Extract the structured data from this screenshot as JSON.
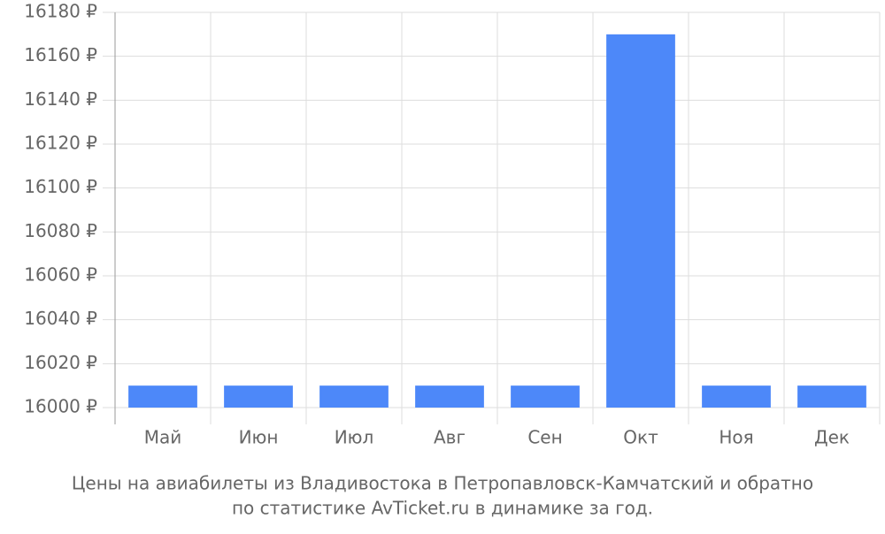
{
  "chart_data": {
    "type": "bar",
    "title": [
      "Цены на авиабилеты из Владивостока в Петропавловск-Камчатский и обратно",
      "по статистике AvTicket.ru в динамике за год."
    ],
    "categories": [
      "Май",
      "Июн",
      "Июл",
      "Авг",
      "Сен",
      "Окт",
      "Ноя",
      "Дек"
    ],
    "values": [
      16010,
      16010,
      16010,
      16010,
      16010,
      16170,
      16010,
      16010
    ],
    "color": "#4d88f9",
    "ylim": [
      16000,
      16180
    ],
    "yticks": [
      {
        "value": 16000,
        "label": "16000 ₽"
      },
      {
        "value": 16020,
        "label": "16020 ₽"
      },
      {
        "value": 16040,
        "label": "16040 ₽"
      },
      {
        "value": 16060,
        "label": "16060 ₽"
      },
      {
        "value": 16080,
        "label": "16080 ₽"
      },
      {
        "value": 16100,
        "label": "16100 ₽"
      },
      {
        "value": 16120,
        "label": "16120 ₽"
      },
      {
        "value": 16140,
        "label": "16140 ₽"
      },
      {
        "value": 16160,
        "label": "16160 ₽"
      },
      {
        "value": 16180,
        "label": "16180 ₽"
      }
    ],
    "grid": true
  }
}
